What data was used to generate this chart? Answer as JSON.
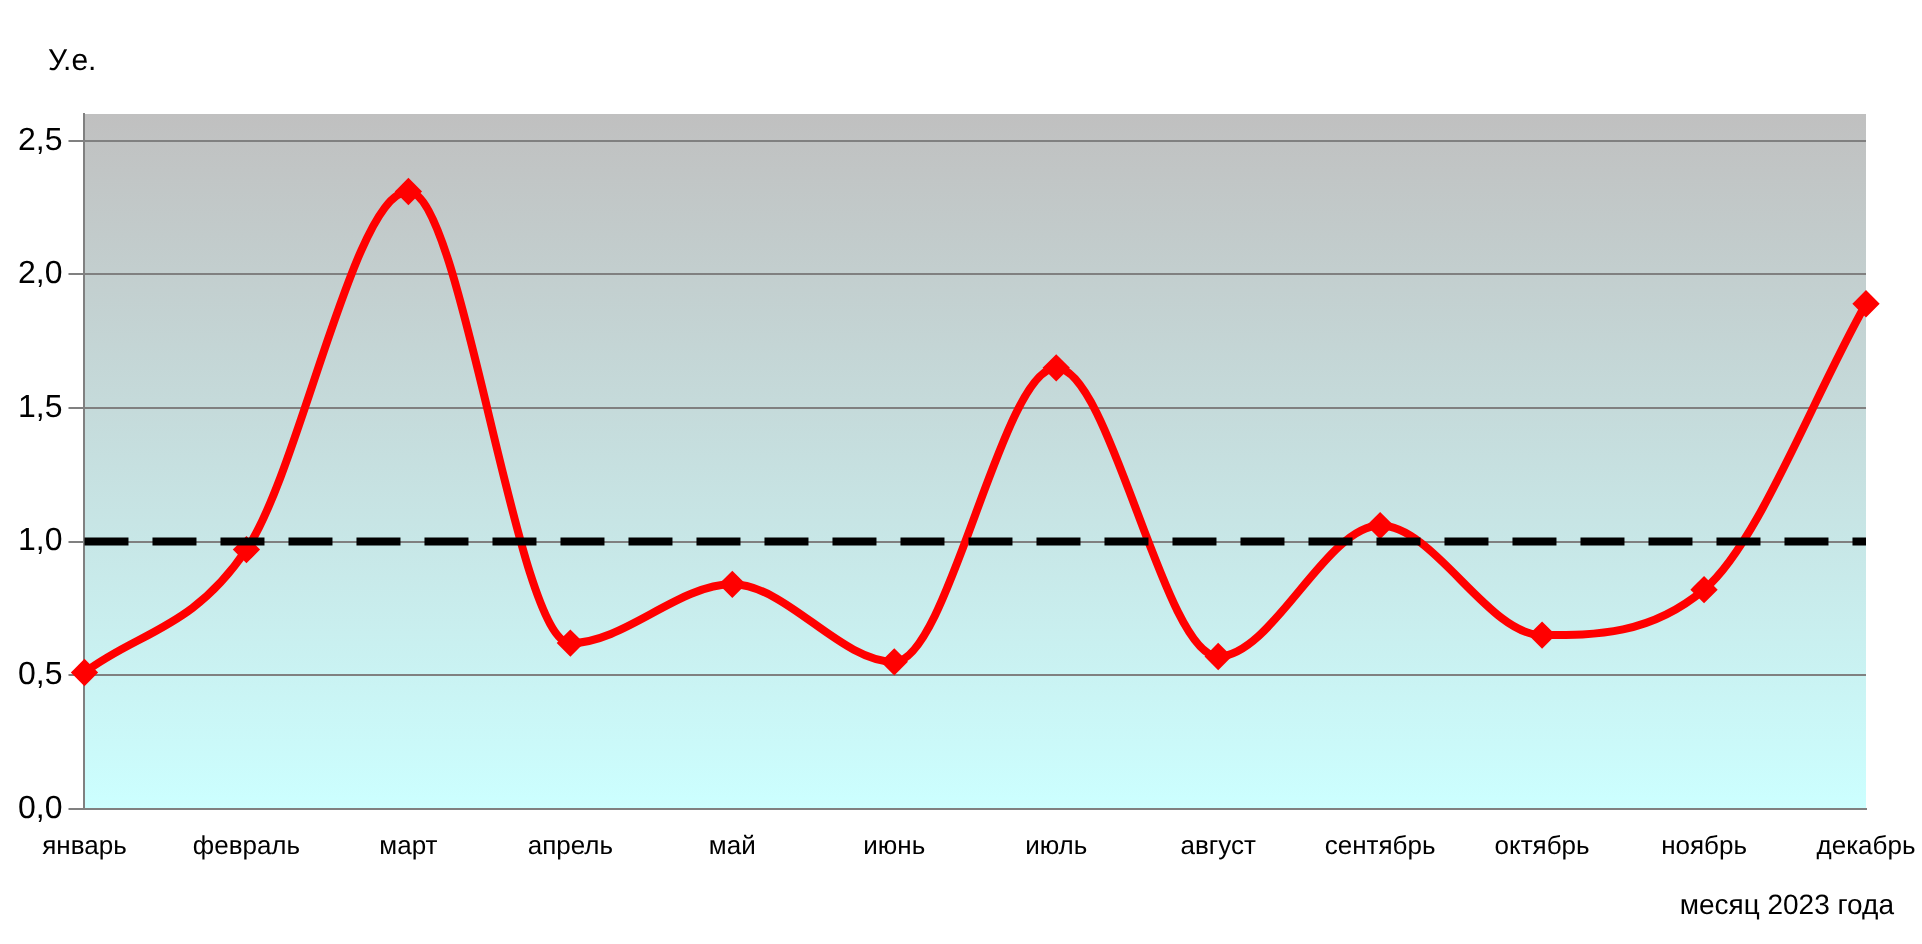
{
  "chart_data": {
    "type": "line",
    "ylabel": "У.е.",
    "xlabel": "месяц 2023 года",
    "categories": [
      "январь",
      "февраль",
      "март",
      "апрель",
      "май",
      "июнь",
      "июль",
      "август",
      "сентябрь",
      "октябрь",
      "ноябрь",
      "декабрь"
    ],
    "series": [
      {
        "color": "#ff0000",
        "values": [
          0.51,
          0.97,
          2.31,
          0.62,
          0.84,
          0.55,
          1.65,
          0.57,
          1.06,
          0.65,
          0.82,
          1.89
        ]
      }
    ],
    "ylim": [
      0,
      2.6
    ],
    "yticks": [
      {
        "value": 0,
        "label": "0,0"
      },
      {
        "value": 0.5,
        "label": "0,5"
      },
      {
        "value": 1,
        "label": "1,0"
      },
      {
        "value": 1.5,
        "label": "1,5"
      },
      {
        "value": 2,
        "label": "2,0"
      },
      {
        "value": 2.5,
        "label": "2,5"
      }
    ],
    "grid": "y",
    "legend": false,
    "marker": "diamond",
    "ref_lines": [
      {
        "axis": "y",
        "value": 1,
        "color": "#000000",
        "line_style": "dashed"
      }
    ]
  }
}
